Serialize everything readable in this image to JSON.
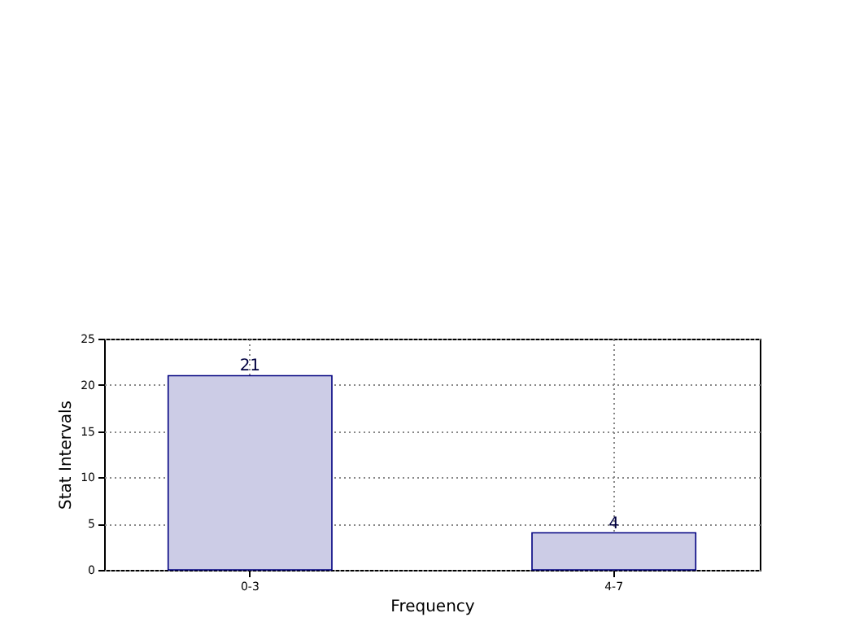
{
  "chart_data": {
    "type": "bar",
    "xlabel": "Frequency",
    "ylabel": "Stat Intervals",
    "categories": [
      "0-3",
      "4-7"
    ],
    "values": [
      21,
      4
    ],
    "color": "#cccce6",
    "ylim": [
      0,
      25
    ],
    "yticks": [
      0,
      5,
      10,
      15,
      20,
      25
    ],
    "grid": true,
    "data_labels": true
  }
}
